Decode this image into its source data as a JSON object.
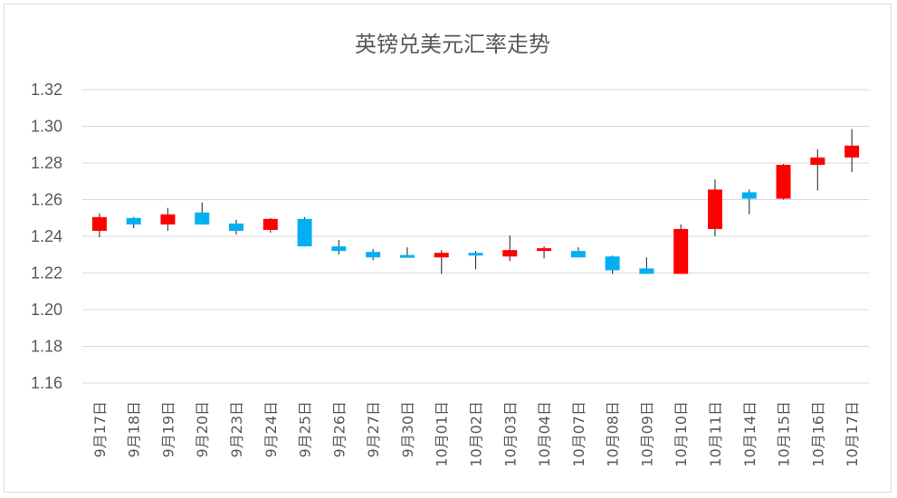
{
  "chart_data": {
    "type": "candlestick",
    "title": "英镑兑美元汇率走势",
    "xlabel": "",
    "ylabel": "",
    "ylim": [
      1.15,
      1.32
    ],
    "yticks": [
      "1.32",
      "1.30",
      "1.28",
      "1.26",
      "1.24",
      "1.22",
      "1.20",
      "1.18",
      "1.16"
    ],
    "ytick_values": [
      1.32,
      1.3,
      1.28,
      1.26,
      1.24,
      1.22,
      1.2,
      1.18,
      1.16
    ],
    "grid": true,
    "up_color": "#ff0000",
    "down_color": "#00b0f0",
    "categories": [
      "9月17日",
      "9月18日",
      "9月19日",
      "9月20日",
      "9月23日",
      "9月24日",
      "9月25日",
      "9月26日",
      "9月27日",
      "9月30日",
      "10月01日",
      "10月02日",
      "10月03日",
      "10月04日",
      "10月07日",
      "10月08日",
      "10月09日",
      "10月10日",
      "10月11日",
      "10月14日",
      "10月15日",
      "10月16日",
      "10月17日"
    ],
    "open": [
      1.243,
      1.25,
      1.2465,
      1.253,
      1.247,
      1.2435,
      1.2495,
      1.2345,
      1.2315,
      1.2298,
      1.2285,
      1.231,
      1.229,
      1.2328,
      1.232,
      1.229,
      1.2225,
      1.2195,
      1.244,
      1.264,
      1.2605,
      1.279,
      1.283
    ],
    "high": [
      1.2525,
      1.2505,
      1.2555,
      1.2585,
      1.249,
      1.25,
      1.2505,
      1.238,
      1.233,
      1.234,
      1.2325,
      1.232,
      1.2405,
      1.2345,
      1.234,
      1.2295,
      1.2285,
      1.2465,
      1.271,
      1.2655,
      1.2795,
      1.2875,
      1.2985
    ],
    "low": [
      1.2395,
      1.2445,
      1.243,
      1.2465,
      1.241,
      1.242,
      1.2345,
      1.23,
      1.227,
      1.2285,
      1.2195,
      1.222,
      1.2265,
      1.228,
      1.2285,
      1.2195,
      1.2195,
      1.2195,
      1.24,
      1.252,
      1.26,
      1.265,
      1.275
    ],
    "close": [
      1.2505,
      1.2465,
      1.252,
      1.2465,
      1.243,
      1.2495,
      1.2345,
      1.232,
      1.2285,
      1.2285,
      1.231,
      1.2295,
      1.2325,
      1.2335,
      1.2285,
      1.2215,
      1.2195,
      1.244,
      1.2655,
      1.2605,
      1.279,
      1.283,
      1.2895
    ]
  }
}
